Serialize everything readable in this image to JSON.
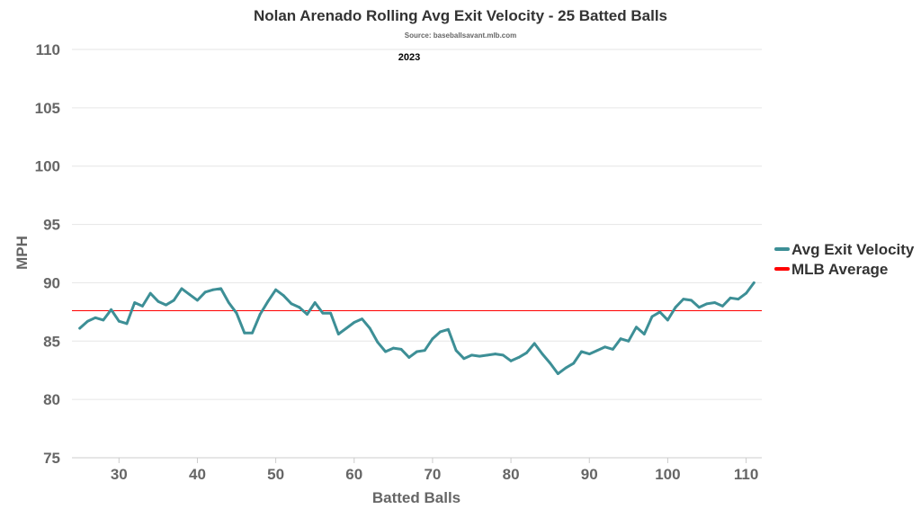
{
  "chart_data": {
    "type": "line",
    "title": "Nolan Arenado Rolling Avg Exit Velocity - 25 Batted Balls",
    "subtitle": "Source: baseballsavant.mlb.com",
    "season_label": "2023",
    "xlabel": "Batted Balls",
    "ylabel": "MPH",
    "xlim": [
      24,
      112
    ],
    "ylim": [
      75,
      110
    ],
    "x_ticks": [
      30,
      40,
      50,
      60,
      70,
      80,
      90,
      100,
      110
    ],
    "y_ticks": [
      75,
      80,
      85,
      90,
      95,
      100,
      105,
      110
    ],
    "grid": true,
    "legend_position": "right",
    "series": [
      {
        "name": "Avg Exit Velocity",
        "color": "#3d8f96",
        "x": [
          25,
          26,
          27,
          28,
          29,
          30,
          31,
          32,
          33,
          34,
          35,
          36,
          37,
          38,
          39,
          40,
          41,
          42,
          43,
          44,
          45,
          46,
          47,
          48,
          49,
          50,
          51,
          52,
          53,
          54,
          55,
          56,
          57,
          58,
          59,
          60,
          61,
          62,
          63,
          64,
          65,
          66,
          67,
          68,
          69,
          70,
          71,
          72,
          73,
          74,
          75,
          76,
          77,
          78,
          79,
          80,
          81,
          82,
          83,
          84,
          85,
          86,
          87,
          88,
          89,
          90,
          91,
          92,
          93,
          94,
          95,
          96,
          97,
          98,
          99,
          100,
          101,
          102,
          103,
          104,
          105,
          106,
          107,
          108,
          109,
          110,
          111
        ],
        "values": [
          86.1,
          86.7,
          87.0,
          86.8,
          87.7,
          86.7,
          86.5,
          88.3,
          88.0,
          89.1,
          88.4,
          88.1,
          88.5,
          89.5,
          89.0,
          88.5,
          89.2,
          89.4,
          89.5,
          88.3,
          87.4,
          85.7,
          85.7,
          87.3,
          88.4,
          89.4,
          88.9,
          88.2,
          87.9,
          87.3,
          88.3,
          87.4,
          87.4,
          85.6,
          86.1,
          86.6,
          86.9,
          86.1,
          84.9,
          84.1,
          84.4,
          84.3,
          83.6,
          84.1,
          84.2,
          85.2,
          85.8,
          86.0,
          84.2,
          83.5,
          83.8,
          83.7,
          83.8,
          83.9,
          83.8,
          83.3,
          83.6,
          84.0,
          84.8,
          83.9,
          83.1,
          82.2,
          82.7,
          83.1,
          84.1,
          83.9,
          84.2,
          84.5,
          84.3,
          85.2,
          85.0,
          86.2,
          85.6,
          87.1,
          87.5,
          86.8,
          87.9,
          88.6,
          88.5,
          87.9,
          88.2,
          88.3,
          88.0,
          88.7,
          88.6,
          89.1,
          90.0
        ]
      },
      {
        "name": "MLB Average",
        "color": "#ff0000",
        "value": 87.6
      }
    ]
  }
}
